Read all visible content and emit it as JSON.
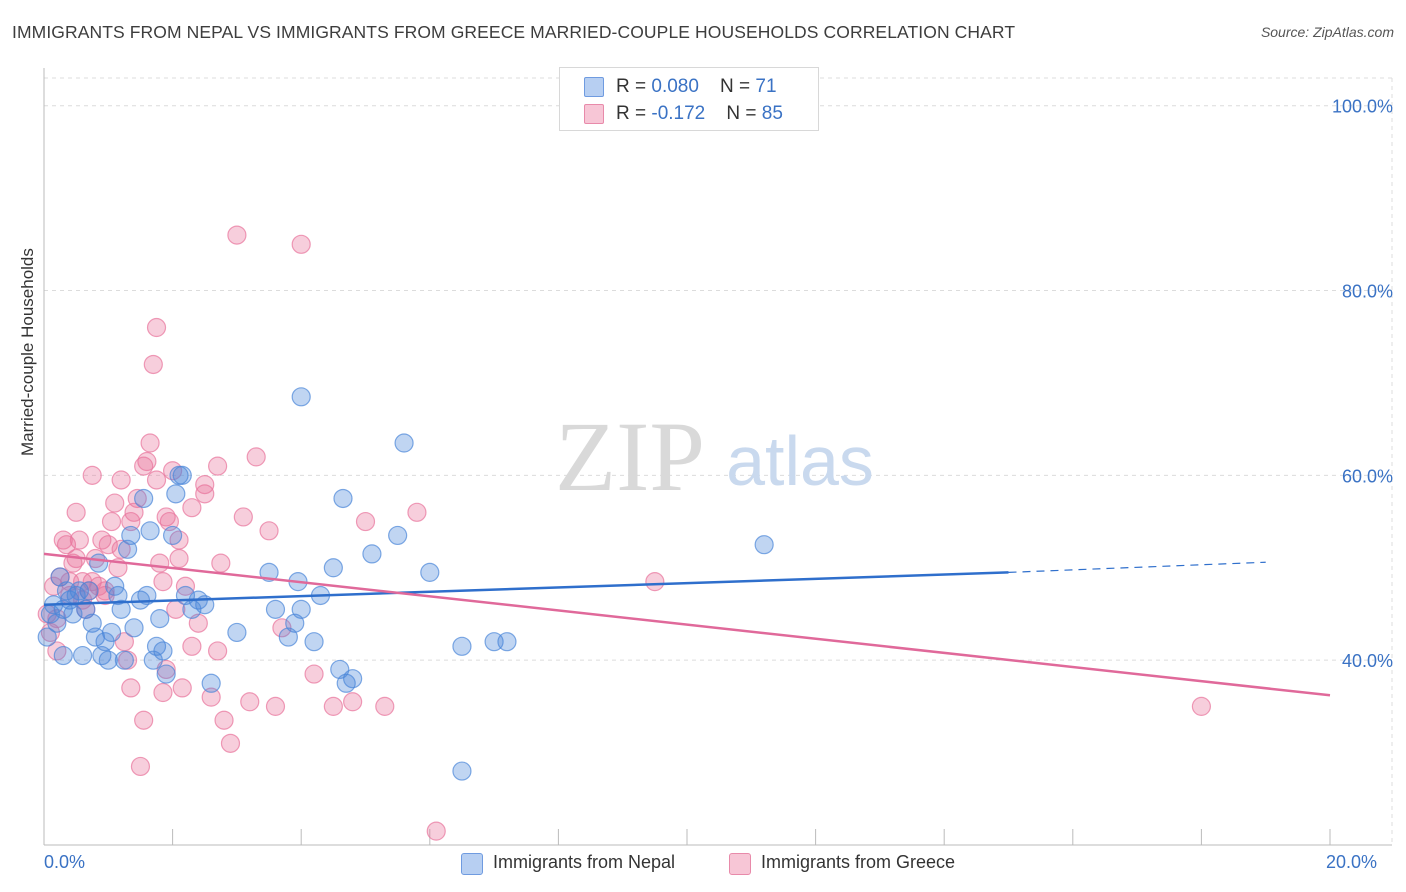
{
  "title": "IMMIGRANTS FROM NEPAL VS IMMIGRANTS FROM GREECE MARRIED-COUPLE HOUSEHOLDS CORRELATION CHART",
  "source": "Source: ZipAtlas.com",
  "watermark": {
    "zip": "ZIP",
    "atlas": "atlas"
  },
  "legend": {
    "nepal": {
      "r_label": "R = ",
      "r_value": "0.080",
      "n_label": "N = ",
      "n_value": "71"
    },
    "greece": {
      "r_label": "R = ",
      "r_value": "-0.172",
      "n_label": "N = ",
      "n_value": "85"
    }
  },
  "bottom_legend": {
    "nepal": "Immigrants from Nepal",
    "greece": "Immigrants from Greece"
  },
  "colors": {
    "nepal": "#4a86d9",
    "greece": "#e8739b",
    "nepal_line": "#2f6fcc",
    "greece_line": "#e0699a",
    "axis_text": "#3a72c4"
  },
  "chart_data": {
    "type": "scatter",
    "title": "IMMIGRANTS FROM NEPAL VS IMMIGRANTS FROM GREECE MARRIED-COUPLE HOUSEHOLDS CORRELATION CHART",
    "xlabel": "",
    "ylabel": "Married-couple Households",
    "xlim": [
      0,
      20
    ],
    "ylim": [
      20,
      103
    ],
    "x_tick_labels": [
      "0.0%",
      "20.0%"
    ],
    "y_ticks": [
      40,
      60,
      80,
      100
    ],
    "y_tick_labels": [
      "40.0%",
      "60.0%",
      "80.0%",
      "100.0%"
    ],
    "grid": true,
    "series": [
      {
        "name": "Immigrants from Nepal",
        "R": 0.08,
        "N": 71,
        "trend": {
          "x0": 0,
          "y0": 46.0,
          "x1": 15,
          "y1": 49.5,
          "dashed_to_x": 19,
          "dashed_to_y": 50.6
        },
        "points": [
          [
            0.05,
            42.5
          ],
          [
            0.1,
            45
          ],
          [
            0.15,
            46
          ],
          [
            0.2,
            44
          ],
          [
            0.25,
            49
          ],
          [
            0.3,
            45.5
          ],
          [
            0.35,
            47.5
          ],
          [
            0.4,
            46.5
          ],
          [
            0.45,
            45
          ],
          [
            0.5,
            47
          ],
          [
            0.6,
            40.5
          ],
          [
            0.65,
            45.5
          ],
          [
            0.7,
            47.5
          ],
          [
            0.75,
            44
          ],
          [
            0.8,
            42.5
          ],
          [
            0.85,
            50.5
          ],
          [
            0.9,
            40.5
          ],
          [
            0.95,
            42
          ],
          [
            1.0,
            40
          ],
          [
            1.05,
            43
          ],
          [
            1.1,
            48
          ],
          [
            1.15,
            47
          ],
          [
            1.2,
            45.5
          ],
          [
            1.25,
            40
          ],
          [
            1.3,
            52
          ],
          [
            1.35,
            53.5
          ],
          [
            1.4,
            43.5
          ],
          [
            1.5,
            46.5
          ],
          [
            1.55,
            57.5
          ],
          [
            1.6,
            47
          ],
          [
            1.65,
            54
          ],
          [
            1.7,
            40
          ],
          [
            1.75,
            41.5
          ],
          [
            1.8,
            44.5
          ],
          [
            1.85,
            41
          ],
          [
            1.9,
            38.5
          ],
          [
            2.0,
            53.5
          ],
          [
            2.05,
            58
          ],
          [
            2.1,
            60
          ],
          [
            2.15,
            60
          ],
          [
            2.2,
            47
          ],
          [
            2.3,
            45.5
          ],
          [
            2.4,
            46.5
          ],
          [
            2.5,
            46
          ],
          [
            2.6,
            37.5
          ],
          [
            3.0,
            43
          ],
          [
            3.5,
            49.5
          ],
          [
            3.6,
            45.5
          ],
          [
            3.8,
            42.5
          ],
          [
            3.9,
            44
          ],
          [
            3.95,
            48.5
          ],
          [
            4.0,
            45.5
          ],
          [
            4.2,
            42
          ],
          [
            4.3,
            47
          ],
          [
            4.5,
            50
          ],
          [
            4.6,
            39
          ],
          [
            4.7,
            37.5
          ],
          [
            4.65,
            57.5
          ],
          [
            4.8,
            38
          ],
          [
            5.1,
            51.5
          ],
          [
            5.5,
            53.5
          ],
          [
            5.6,
            63.5
          ],
          [
            6.0,
            49.5
          ],
          [
            6.5,
            41.5
          ],
          [
            7.0,
            42
          ],
          [
            7.2,
            42
          ],
          [
            6.5,
            28
          ],
          [
            11.2,
            52.5
          ],
          [
            4.0,
            68.5
          ],
          [
            0.3,
            40.5
          ],
          [
            0.55,
            47.5
          ]
        ]
      },
      {
        "name": "Immigrants from Greece",
        "R": -0.172,
        "N": 85,
        "trend": {
          "x0": 0,
          "y0": 51.5,
          "x1": 20,
          "y1": 36.2
        },
        "points": [
          [
            0.05,
            45
          ],
          [
            0.1,
            43
          ],
          [
            0.15,
            48
          ],
          [
            0.2,
            41
          ],
          [
            0.25,
            49
          ],
          [
            0.3,
            53
          ],
          [
            0.35,
            52.5
          ],
          [
            0.4,
            47
          ],
          [
            0.45,
            50.5
          ],
          [
            0.5,
            56
          ],
          [
            0.55,
            53
          ],
          [
            0.6,
            48.5
          ],
          [
            0.65,
            45.5
          ],
          [
            0.7,
            47.5
          ],
          [
            0.75,
            60
          ],
          [
            0.8,
            51
          ],
          [
            0.85,
            48
          ],
          [
            0.9,
            53
          ],
          [
            0.95,
            47
          ],
          [
            1.0,
            52.5
          ],
          [
            1.05,
            55
          ],
          [
            1.1,
            57
          ],
          [
            1.15,
            50
          ],
          [
            1.2,
            59.5
          ],
          [
            1.25,
            42
          ],
          [
            1.3,
            40
          ],
          [
            1.35,
            37
          ],
          [
            1.4,
            56
          ],
          [
            1.45,
            57.5
          ],
          [
            1.5,
            28.5
          ],
          [
            1.55,
            33.5
          ],
          [
            1.6,
            61.5
          ],
          [
            1.65,
            63.5
          ],
          [
            1.7,
            72
          ],
          [
            1.75,
            59.5
          ],
          [
            1.8,
            50.5
          ],
          [
            1.85,
            36.5
          ],
          [
            1.9,
            55.5
          ],
          [
            1.95,
            55
          ],
          [
            2.0,
            60.5
          ],
          [
            2.05,
            45.5
          ],
          [
            2.1,
            53
          ],
          [
            2.15,
            37
          ],
          [
            2.2,
            48
          ],
          [
            2.3,
            41.5
          ],
          [
            2.4,
            44
          ],
          [
            2.5,
            58
          ],
          [
            2.6,
            36
          ],
          [
            2.7,
            61
          ],
          [
            2.75,
            50.5
          ],
          [
            2.8,
            33.5
          ],
          [
            2.9,
            31
          ],
          [
            3.0,
            86
          ],
          [
            3.1,
            55.5
          ],
          [
            3.2,
            35.5
          ],
          [
            3.3,
            62
          ],
          [
            3.5,
            54
          ],
          [
            3.6,
            35
          ],
          [
            3.7,
            43.5
          ],
          [
            4.0,
            85
          ],
          [
            4.2,
            38.5
          ],
          [
            4.5,
            35
          ],
          [
            4.8,
            35.5
          ],
          [
            5.0,
            55
          ],
          [
            5.3,
            35
          ],
          [
            5.8,
            56
          ],
          [
            6.1,
            21.5
          ],
          [
            9.5,
            48.5
          ],
          [
            18.0,
            35
          ],
          [
            0.2,
            44.5
          ],
          [
            0.4,
            48.5
          ],
          [
            0.5,
            51
          ],
          [
            0.6,
            46.5
          ],
          [
            0.75,
            48.5
          ],
          [
            0.95,
            47.5
          ],
          [
            1.2,
            52
          ],
          [
            1.35,
            55
          ],
          [
            1.55,
            61
          ],
          [
            1.75,
            76
          ],
          [
            1.9,
            39
          ],
          [
            2.1,
            51
          ],
          [
            2.3,
            56.5
          ],
          [
            2.5,
            59
          ],
          [
            2.7,
            41
          ],
          [
            1.85,
            48.5
          ]
        ]
      }
    ]
  }
}
